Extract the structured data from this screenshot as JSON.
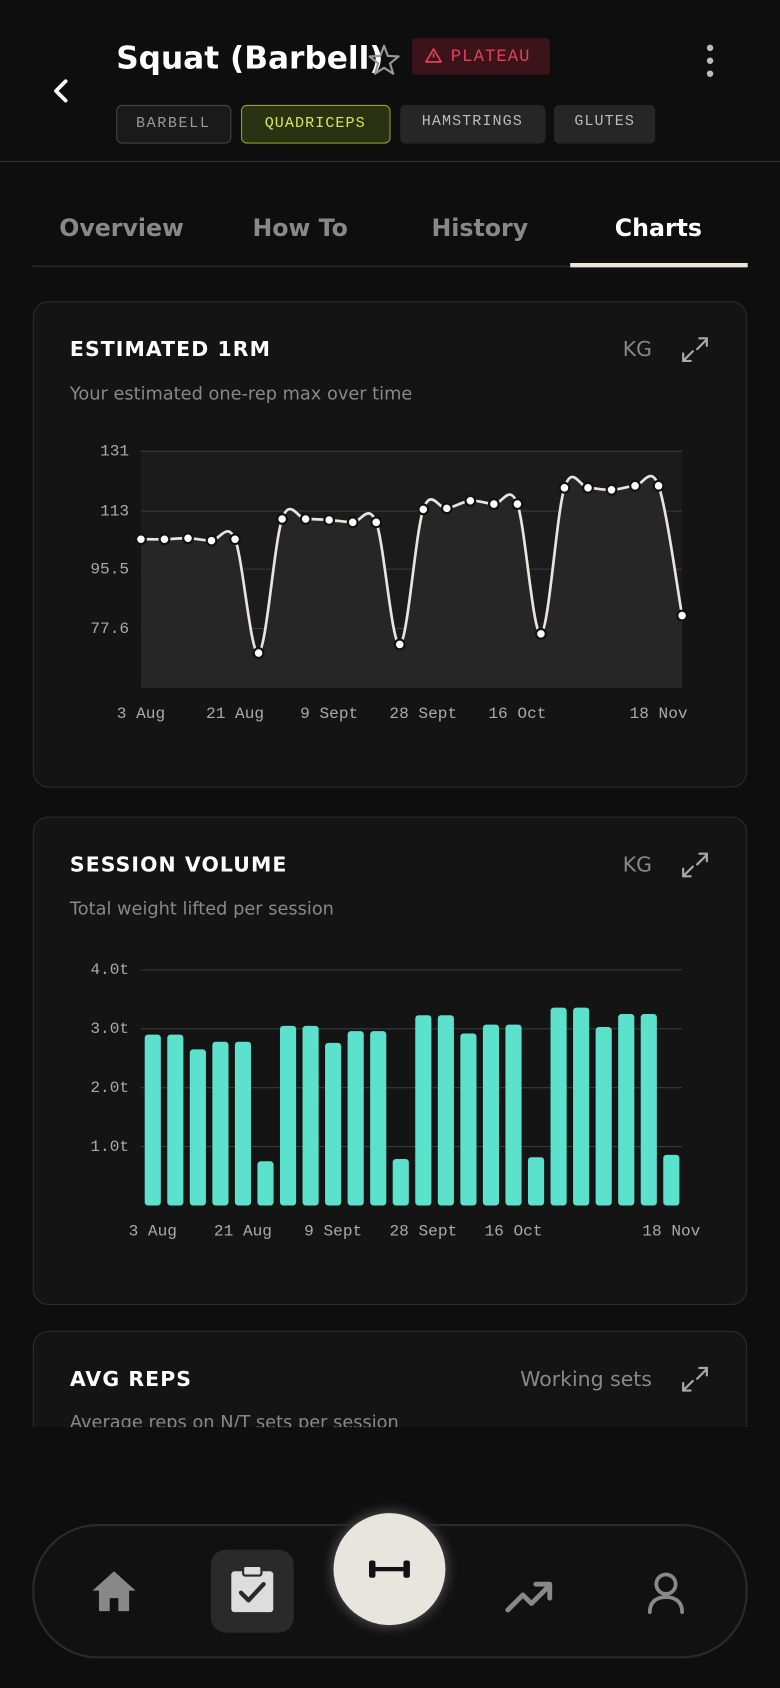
{
  "header": {
    "title": "Squat (Barbell)",
    "badge": "PLATEAU",
    "tags": [
      "BARBELL",
      "QUADRICEPS",
      "HAMSTRINGS",
      "GLUTES"
    ]
  },
  "tabs": [
    "Overview",
    "How To",
    "History",
    "Charts"
  ],
  "chart_data": [
    {
      "type": "line",
      "title": "ESTIMATED 1RM",
      "unit": "KG",
      "subtitle": "Your estimated one-rep max over time",
      "categories": [
        "3 Aug",
        null,
        null,
        null,
        "21 Aug",
        null,
        null,
        null,
        "9 Sept",
        null,
        null,
        null,
        "28 Sept",
        null,
        null,
        null,
        "16 Oct",
        null,
        null,
        null,
        null,
        null,
        "18 Nov",
        null
      ],
      "values": [
        104.5,
        104.5,
        104.8,
        104.1,
        104.5,
        70.2,
        110.6,
        110.6,
        110.3,
        109.6,
        109.6,
        72.8,
        113.5,
        113.8,
        116.1,
        115.1,
        115.1,
        76.0,
        120.0,
        120.0,
        119.4,
        120.6,
        120.6,
        81.5
      ],
      "color": "#e8e4de",
      "ylim": [
        60,
        131
      ],
      "yticks": [
        131,
        113,
        95.5,
        77.6
      ],
      "grid": true
    },
    {
      "type": "bar",
      "title": "SESSION VOLUME",
      "unit": "KG",
      "subtitle": "Total weight lifted per session",
      "categories": [
        "3 Aug",
        null,
        null,
        null,
        "21 Aug",
        null,
        null,
        null,
        "9 Sept",
        null,
        null,
        null,
        "28 Sept",
        null,
        null,
        null,
        "16 Oct",
        null,
        null,
        null,
        null,
        null,
        null,
        "18 Nov"
      ],
      "values": [
        2.9,
        2.9,
        2.65,
        2.78,
        2.78,
        0.75,
        3.05,
        3.05,
        2.76,
        2.96,
        2.96,
        0.79,
        3.23,
        3.23,
        2.92,
        3.07,
        3.07,
        0.82,
        3.36,
        3.36,
        3.03,
        3.25,
        3.25,
        0.86
      ],
      "color": "#5ce1cc",
      "ylim": [
        0,
        4
      ],
      "yticks": [
        {
          "value": 1,
          "label": "1.0t"
        },
        {
          "value": 2,
          "label": "2.0t"
        },
        {
          "value": 3,
          "label": "3.0t"
        },
        {
          "value": 4,
          "label": "4.0t"
        }
      ],
      "grid": true
    }
  ],
  "cards": [
    {
      "title": "AVG REPS",
      "unit": "Working sets",
      "subtitle": "Average reps on N/T sets per session"
    }
  ]
}
